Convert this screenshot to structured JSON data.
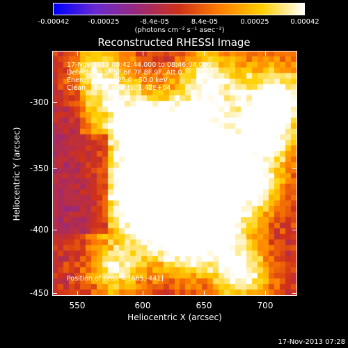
{
  "colorbar": {
    "ticks": [
      "-0.00042",
      "-0.00025",
      "-8.4e-05",
      "8.4e-05",
      "0.00025",
      "0.00042"
    ],
    "units": "(photons cm⁻² s⁻¹ asec⁻²)",
    "colors": [
      "#0000ff",
      "#6a2bd0",
      "#9a2a7a",
      "#d0321a",
      "#ff8000",
      "#ffd000",
      "#ffffff"
    ]
  },
  "plot": {
    "title": "Reconstructed RHESSI Image",
    "info_lines": [
      "17-Nov-2013 08:42:44.000 to 08:46:04.000",
      "Detectors: 3F 5F 6F 7F 8F 9F, Att 0",
      "Energy Range: 25.0 - 50.0 keV",
      "Clean    Total counts: 1.42E+04"
    ],
    "peak_text": "Position of Peak = [665,-441]",
    "xlabel": "Heliocentric X (arcsec)",
    "ylabel": "Heliocentric Y (arcsec)",
    "xticks": [
      "550",
      "600",
      "650",
      "700"
    ],
    "yticks": [
      "-300",
      "-350",
      "-400",
      "-450"
    ]
  },
  "footer": {
    "timestamp": "17-Nov-2013 07:28"
  }
}
